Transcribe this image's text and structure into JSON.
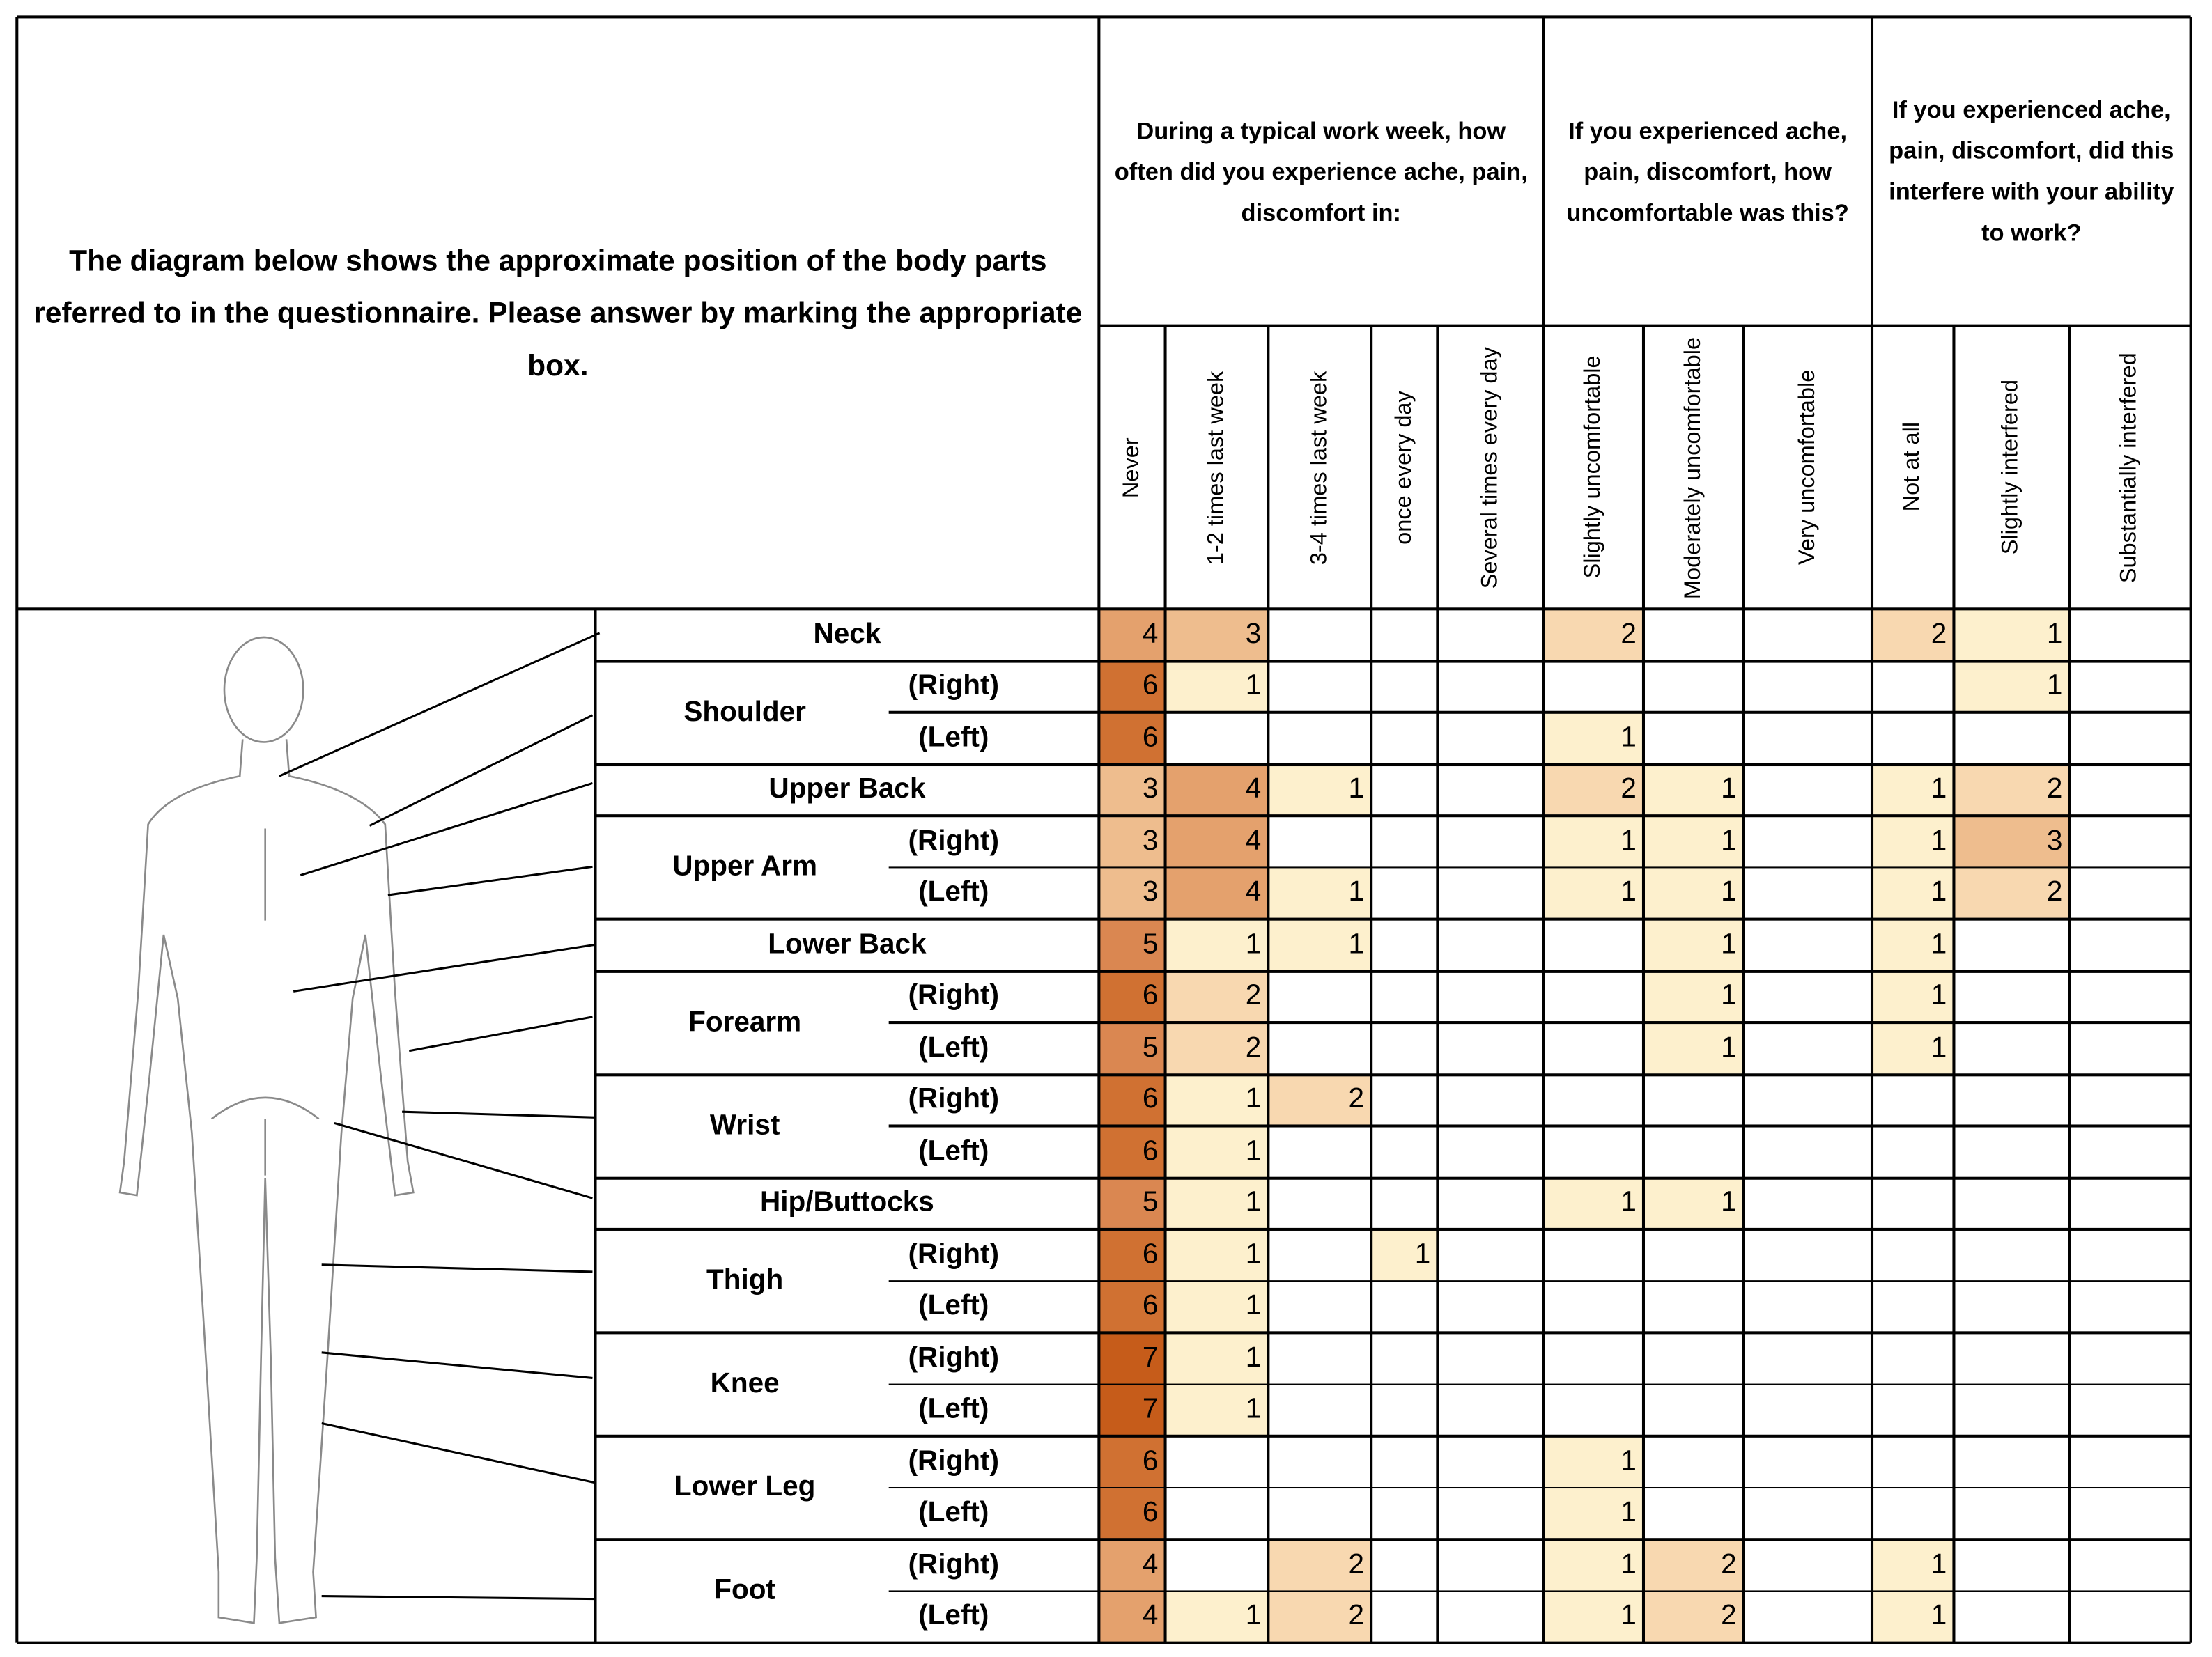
{
  "intro": "The diagram below shows the approximate position of the body parts referred to in the questionnaire. Please answer by marking the appropriate box.",
  "groups": [
    {
      "label": "During a typical work week, how often did you experience ache, pain, discomfort in:",
      "columns": [
        "Never",
        "1-2 times last week",
        "3-4 times last week",
        "once every day",
        "Several times every day"
      ]
    },
    {
      "label": "If you experienced ache, pain, discomfort, how uncomfortable was this?",
      "columns": [
        "Slightly uncomfortable",
        "Moderately uncomfortable",
        "Very uncomfortable"
      ]
    },
    {
      "label": "If you experienced ache, pain, discomfort, did this interfere with your ability to work?",
      "columns": [
        "Not at all",
        "Slightly interfered",
        "Substantially interfered"
      ]
    }
  ],
  "color_scale": [
    "#fdf0cd",
    "#f8d8b0",
    "#eebd8e",
    "#e4a16d",
    "#da8751",
    "#d07132",
    "#c65c1a"
  ],
  "parts": [
    {
      "name": "Neck",
      "values": [
        4,
        3,
        null,
        null,
        null,
        2,
        null,
        null,
        2,
        1,
        null
      ]
    },
    {
      "name": "Shoulder",
      "sides": [
        {
          "label": "(Right)",
          "values": [
            6,
            1,
            null,
            null,
            null,
            null,
            null,
            null,
            null,
            1,
            null
          ]
        },
        {
          "label": "(Left)",
          "values": [
            6,
            null,
            null,
            null,
            null,
            1,
            null,
            null,
            null,
            null,
            null
          ]
        }
      ]
    },
    {
      "name": "Upper Back",
      "values": [
        3,
        4,
        1,
        null,
        null,
        2,
        1,
        null,
        1,
        2,
        null
      ]
    },
    {
      "name": "Upper Arm",
      "sides": [
        {
          "label": "(Right)",
          "values": [
            3,
            4,
            null,
            null,
            null,
            1,
            1,
            null,
            1,
            3,
            null
          ]
        },
        {
          "label": "(Left)",
          "values": [
            3,
            4,
            1,
            null,
            null,
            1,
            1,
            null,
            1,
            2,
            null
          ]
        }
      ]
    },
    {
      "name": "Lower Back",
      "values": [
        5,
        1,
        1,
        null,
        null,
        null,
        1,
        null,
        1,
        null,
        null
      ]
    },
    {
      "name": "Forearm",
      "sides": [
        {
          "label": "(Right)",
          "values": [
            6,
            2,
            null,
            null,
            null,
            null,
            1,
            null,
            1,
            null,
            null
          ]
        },
        {
          "label": "(Left)",
          "values": [
            5,
            2,
            null,
            null,
            null,
            null,
            1,
            null,
            1,
            null,
            null
          ]
        }
      ]
    },
    {
      "name": "Wrist",
      "sides": [
        {
          "label": "(Right)",
          "values": [
            6,
            1,
            2,
            null,
            null,
            null,
            null,
            null,
            null,
            null,
            null
          ]
        },
        {
          "label": "(Left)",
          "values": [
            6,
            1,
            null,
            null,
            null,
            null,
            null,
            null,
            null,
            null,
            null
          ]
        }
      ]
    },
    {
      "name": "Hip/Buttocks",
      "values": [
        5,
        1,
        null,
        null,
        null,
        1,
        1,
        null,
        null,
        null,
        null
      ]
    },
    {
      "name": "Thigh",
      "sides": [
        {
          "label": "(Right)",
          "values": [
            6,
            1,
            null,
            1,
            null,
            null,
            null,
            null,
            null,
            null,
            null
          ]
        },
        {
          "label": "(Left)",
          "values": [
            6,
            1,
            null,
            null,
            null,
            null,
            null,
            null,
            null,
            null,
            null
          ]
        }
      ]
    },
    {
      "name": "Knee",
      "sides": [
        {
          "label": "(Right)",
          "values": [
            7,
            1,
            null,
            null,
            null,
            null,
            null,
            null,
            null,
            null,
            null
          ]
        },
        {
          "label": "(Left)",
          "values": [
            7,
            1,
            null,
            null,
            null,
            null,
            null,
            null,
            null,
            null,
            null
          ]
        }
      ]
    },
    {
      "name": "Lower Leg",
      "sides": [
        {
          "label": "(Right)",
          "values": [
            6,
            null,
            null,
            null,
            null,
            1,
            null,
            null,
            null,
            null,
            null
          ]
        },
        {
          "label": "(Left)",
          "values": [
            6,
            null,
            null,
            null,
            null,
            1,
            null,
            null,
            null,
            null,
            null
          ]
        }
      ]
    },
    {
      "name": "Foot",
      "sides": [
        {
          "label": "(Right)",
          "values": [
            4,
            null,
            2,
            null,
            null,
            1,
            2,
            null,
            1,
            null,
            null
          ]
        },
        {
          "label": "(Left)",
          "values": [
            4,
            1,
            2,
            null,
            null,
            1,
            2,
            null,
            1,
            null,
            null
          ]
        }
      ]
    }
  ]
}
